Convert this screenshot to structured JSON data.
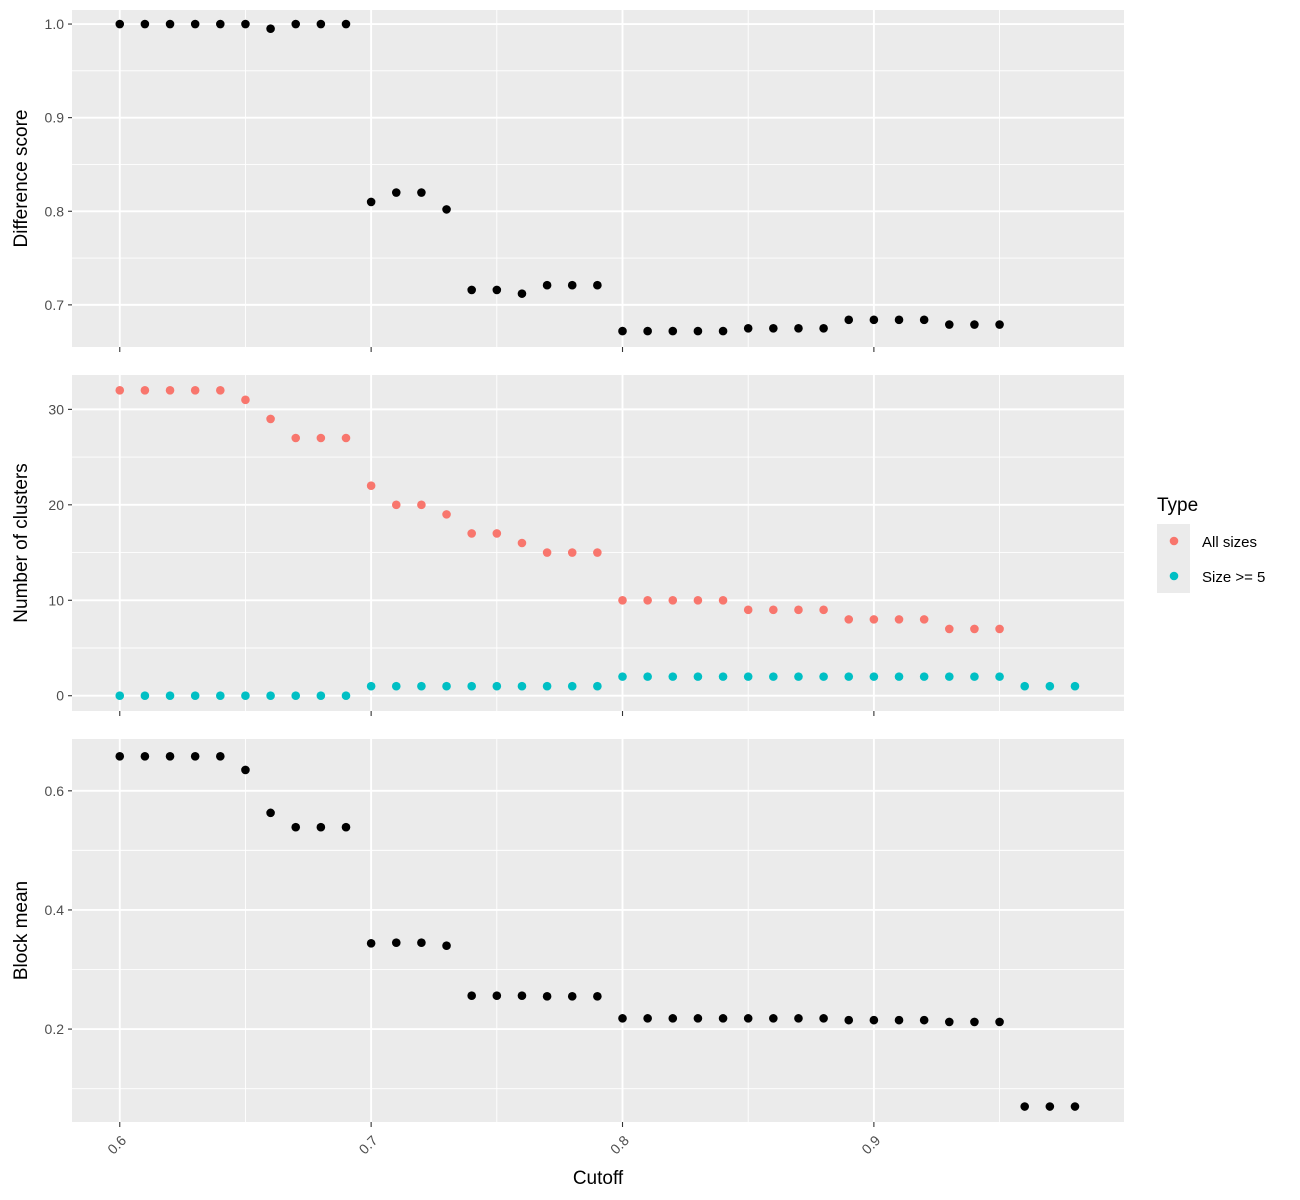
{
  "chart_data": [
    {
      "type": "scatter",
      "ylabel": "Difference score",
      "ylim": [
        0.655,
        1.015
      ],
      "yticks": [
        0.7,
        0.8,
        0.9,
        1.0
      ],
      "yticklabels": [
        "0.7",
        "0.8",
        "0.9",
        "1.0"
      ],
      "series": [
        {
          "color": "#000000",
          "x": [
            0.6,
            0.61,
            0.62,
            0.63,
            0.64,
            0.65,
            0.66,
            0.67,
            0.68,
            0.69,
            0.7,
            0.71,
            0.72,
            0.73,
            0.74,
            0.75,
            0.76,
            0.77,
            0.78,
            0.79,
            0.8,
            0.81,
            0.82,
            0.83,
            0.84,
            0.85,
            0.86,
            0.87,
            0.88,
            0.89,
            0.9,
            0.91,
            0.92,
            0.93,
            0.94,
            0.95
          ],
          "y": [
            1.0,
            1.0,
            1.0,
            1.0,
            1.0,
            1.0,
            0.995,
            1.0,
            1.0,
            1.0,
            0.81,
            0.82,
            0.82,
            0.802,
            0.716,
            0.716,
            0.712,
            0.721,
            0.721,
            0.721,
            0.672,
            0.672,
            0.672,
            0.672,
            0.672,
            0.675,
            0.675,
            0.675,
            0.675,
            0.684,
            0.684,
            0.684,
            0.684,
            0.679,
            0.679,
            0.679
          ]
        }
      ]
    },
    {
      "type": "scatter",
      "ylabel": "Number of clusters",
      "ylim": [
        -1.6,
        33.6
      ],
      "yticks": [
        0,
        10,
        20,
        30
      ],
      "yticklabels": [
        "0",
        "10",
        "20",
        "30"
      ],
      "series": [
        {
          "name": "All sizes",
          "color": "#F8766D",
          "x": [
            0.6,
            0.61,
            0.62,
            0.63,
            0.64,
            0.65,
            0.66,
            0.67,
            0.68,
            0.69,
            0.7,
            0.71,
            0.72,
            0.73,
            0.74,
            0.75,
            0.76,
            0.77,
            0.78,
            0.79,
            0.8,
            0.81,
            0.82,
            0.83,
            0.84,
            0.85,
            0.86,
            0.87,
            0.88,
            0.89,
            0.9,
            0.91,
            0.92,
            0.93,
            0.94,
            0.95
          ],
          "y": [
            32,
            32,
            32,
            32,
            32,
            31,
            29,
            27,
            27,
            27,
            22,
            20,
            20,
            19,
            17,
            17,
            16,
            15,
            15,
            15,
            10,
            10,
            10,
            10,
            10,
            9,
            9,
            9,
            9,
            8,
            8,
            8,
            8,
            7,
            7,
            7
          ]
        },
        {
          "name": "Size >= 5",
          "color": "#00BFC4",
          "x": [
            0.6,
            0.61,
            0.62,
            0.63,
            0.64,
            0.65,
            0.66,
            0.67,
            0.68,
            0.69,
            0.7,
            0.71,
            0.72,
            0.73,
            0.74,
            0.75,
            0.76,
            0.77,
            0.78,
            0.79,
            0.8,
            0.81,
            0.82,
            0.83,
            0.84,
            0.85,
            0.86,
            0.87,
            0.88,
            0.89,
            0.9,
            0.91,
            0.92,
            0.93,
            0.94,
            0.95,
            0.96,
            0.97,
            0.98
          ],
          "y": [
            0,
            0,
            0,
            0,
            0,
            0,
            0,
            0,
            0,
            0,
            1,
            1,
            1,
            1,
            1,
            1,
            1,
            1,
            1,
            1,
            2,
            2,
            2,
            2,
            2,
            2,
            2,
            2,
            2,
            2,
            2,
            2,
            2,
            2,
            2,
            2,
            1,
            1,
            1
          ]
        }
      ]
    },
    {
      "type": "scatter",
      "ylabel": "Block mean",
      "ylim": [
        0.044,
        0.687
      ],
      "yticks": [
        0.2,
        0.4,
        0.6
      ],
      "yticklabels": [
        "0.2",
        "0.4",
        "0.6"
      ],
      "series": [
        {
          "color": "#000000",
          "x": [
            0.6,
            0.61,
            0.62,
            0.63,
            0.64,
            0.65,
            0.66,
            0.67,
            0.68,
            0.69,
            0.7,
            0.71,
            0.72,
            0.73,
            0.74,
            0.75,
            0.76,
            0.77,
            0.78,
            0.79,
            0.8,
            0.81,
            0.82,
            0.83,
            0.84,
            0.85,
            0.86,
            0.87,
            0.88,
            0.89,
            0.9,
            0.91,
            0.92,
            0.93,
            0.94,
            0.95,
            0.96,
            0.97,
            0.98
          ],
          "y": [
            0.658,
            0.658,
            0.658,
            0.658,
            0.658,
            0.635,
            0.563,
            0.539,
            0.539,
            0.539,
            0.344,
            0.345,
            0.345,
            0.34,
            0.256,
            0.256,
            0.256,
            0.255,
            0.255,
            0.255,
            0.218,
            0.218,
            0.218,
            0.218,
            0.218,
            0.218,
            0.218,
            0.218,
            0.218,
            0.215,
            0.215,
            0.215,
            0.215,
            0.212,
            0.212,
            0.212,
            0.07,
            0.07,
            0.07
          ]
        }
      ]
    }
  ],
  "x_axis": {
    "label": "Cutoff",
    "xlim": [
      0.581,
      0.9995
    ],
    "ticks": [
      0.6,
      0.7,
      0.8,
      0.9
    ],
    "ticklabels": [
      "0.6",
      "0.7",
      "0.8",
      "0.9"
    ]
  },
  "legend": {
    "title": "Type",
    "placement": "right",
    "entries": [
      {
        "label": "All sizes",
        "color": "#F8766D"
      },
      {
        "label": "Size >= 5",
        "color": "#00BFC4"
      }
    ]
  },
  "theme": {
    "panel_background": "#EBEBEB",
    "grid_color": "#FFFFFF"
  }
}
